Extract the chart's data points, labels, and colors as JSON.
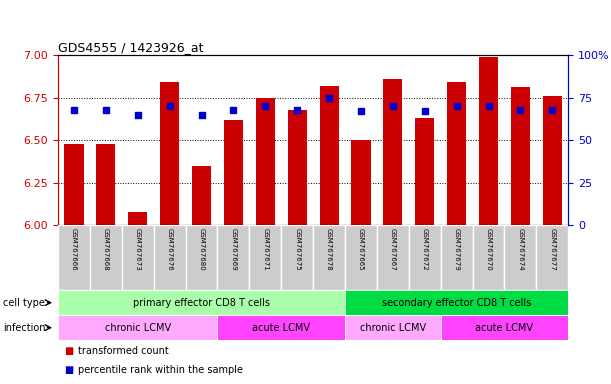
{
  "title": "GDS4555 / 1423926_at",
  "samples": [
    "GSM767666",
    "GSM767668",
    "GSM767673",
    "GSM767676",
    "GSM767680",
    "GSM767669",
    "GSM767671",
    "GSM767675",
    "GSM767678",
    "GSM767665",
    "GSM767667",
    "GSM767672",
    "GSM767679",
    "GSM767670",
    "GSM767674",
    "GSM767677"
  ],
  "transformed_counts": [
    6.48,
    6.48,
    6.08,
    6.84,
    6.35,
    6.62,
    6.75,
    6.68,
    6.82,
    6.5,
    6.86,
    6.63,
    6.84,
    6.99,
    6.81,
    6.76
  ],
  "percentile_ranks": [
    68,
    68,
    65,
    70,
    65,
    68,
    70,
    68,
    75,
    67,
    70,
    67,
    70,
    70,
    68,
    68
  ],
  "ylim_left": [
    6.0,
    7.0
  ],
  "ylim_right": [
    0,
    100
  ],
  "yticks_left": [
    6.0,
    6.25,
    6.5,
    6.75,
    7.0
  ],
  "yticks_right": [
    0,
    25,
    50,
    75,
    100
  ],
  "bar_color": "#cc0000",
  "dot_color": "#0000cc",
  "bar_bottom": 6.0,
  "cell_type_groups": [
    {
      "label": "primary effector CD8 T cells",
      "start": 0,
      "end": 9,
      "color": "#aaffaa"
    },
    {
      "label": "secondary effector CD8 T cells",
      "start": 9,
      "end": 16,
      "color": "#00dd44"
    }
  ],
  "infection_groups": [
    {
      "label": "chronic LCMV",
      "start": 0,
      "end": 5,
      "color": "#ffaaff"
    },
    {
      "label": "acute LCMV",
      "start": 5,
      "end": 9,
      "color": "#ff44ff"
    },
    {
      "label": "chronic LCMV",
      "start": 9,
      "end": 12,
      "color": "#ffaaff"
    },
    {
      "label": "acute LCMV",
      "start": 12,
      "end": 16,
      "color": "#ff44ff"
    }
  ],
  "legend_items": [
    {
      "label": "transformed count",
      "color": "#cc0000"
    },
    {
      "label": "percentile rank within the sample",
      "color": "#0000cc"
    }
  ],
  "axis_label_color_left": "#cc0000",
  "axis_label_color_right": "#0000cc",
  "sample_bg_color": "#cccccc",
  "sample_border_color": "#ffffff"
}
